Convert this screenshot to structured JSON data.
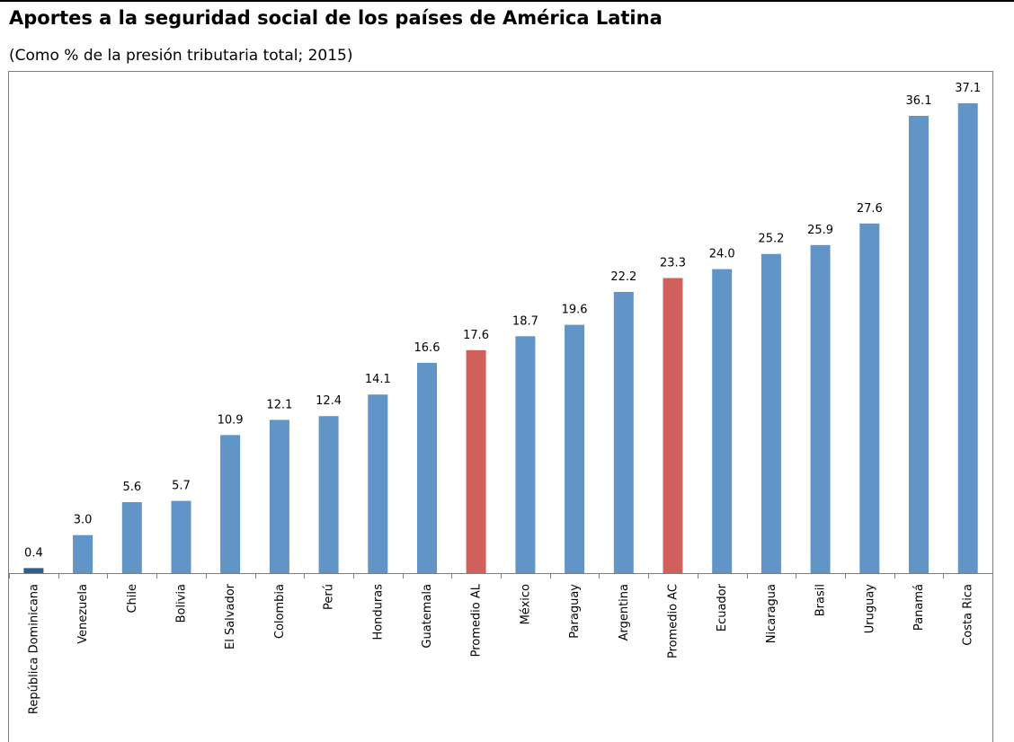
{
  "chart_data": {
    "type": "bar",
    "title": "Aportes a la seguridad social de los países de América Latina",
    "subtitle": "(Como % de la presión tributaria total; 2015)",
    "categories": [
      "República Dominicana",
      "Venezuela",
      "Chile",
      "Bolivia",
      "El Salvador",
      "Colombia",
      "Perú",
      "Honduras",
      "Guatemala",
      "Promedio AL",
      "México",
      "Paraguay",
      "Argentina",
      "Promedio AC",
      "Ecuador",
      "Nicaragua",
      "Brasil",
      "Uruguay",
      "Panamá",
      "Costa Rica"
    ],
    "values": [
      0.4,
      3.0,
      5.6,
      5.7,
      10.9,
      12.1,
      12.4,
      14.1,
      16.6,
      17.6,
      18.7,
      19.6,
      22.2,
      23.3,
      24.0,
      25.2,
      25.9,
      27.6,
      36.1,
      37.1
    ],
    "value_labels": [
      "0.4",
      "3.0",
      "5.6",
      "5.7",
      "10.9",
      "12.1",
      "12.4",
      "14.1",
      "16.6",
      "17.6",
      "18.7",
      "19.6",
      "22.2",
      "23.3",
      "24.0",
      "25.2",
      "25.9",
      "27.6",
      "36.1",
      "37.1"
    ],
    "bar_colors": [
      "#2e5f8a",
      "#6195c8",
      "#6195c8",
      "#6195c8",
      "#6195c8",
      "#6195c8",
      "#6195c8",
      "#6195c8",
      "#6195c8",
      "#d0605c",
      "#6195c8",
      "#6195c8",
      "#6195c8",
      "#d0605c",
      "#6195c8",
      "#6195c8",
      "#6195c8",
      "#6195c8",
      "#6195c8",
      "#6195c8"
    ],
    "xlabel": "",
    "ylabel": "",
    "grid": false,
    "legend": "none"
  }
}
